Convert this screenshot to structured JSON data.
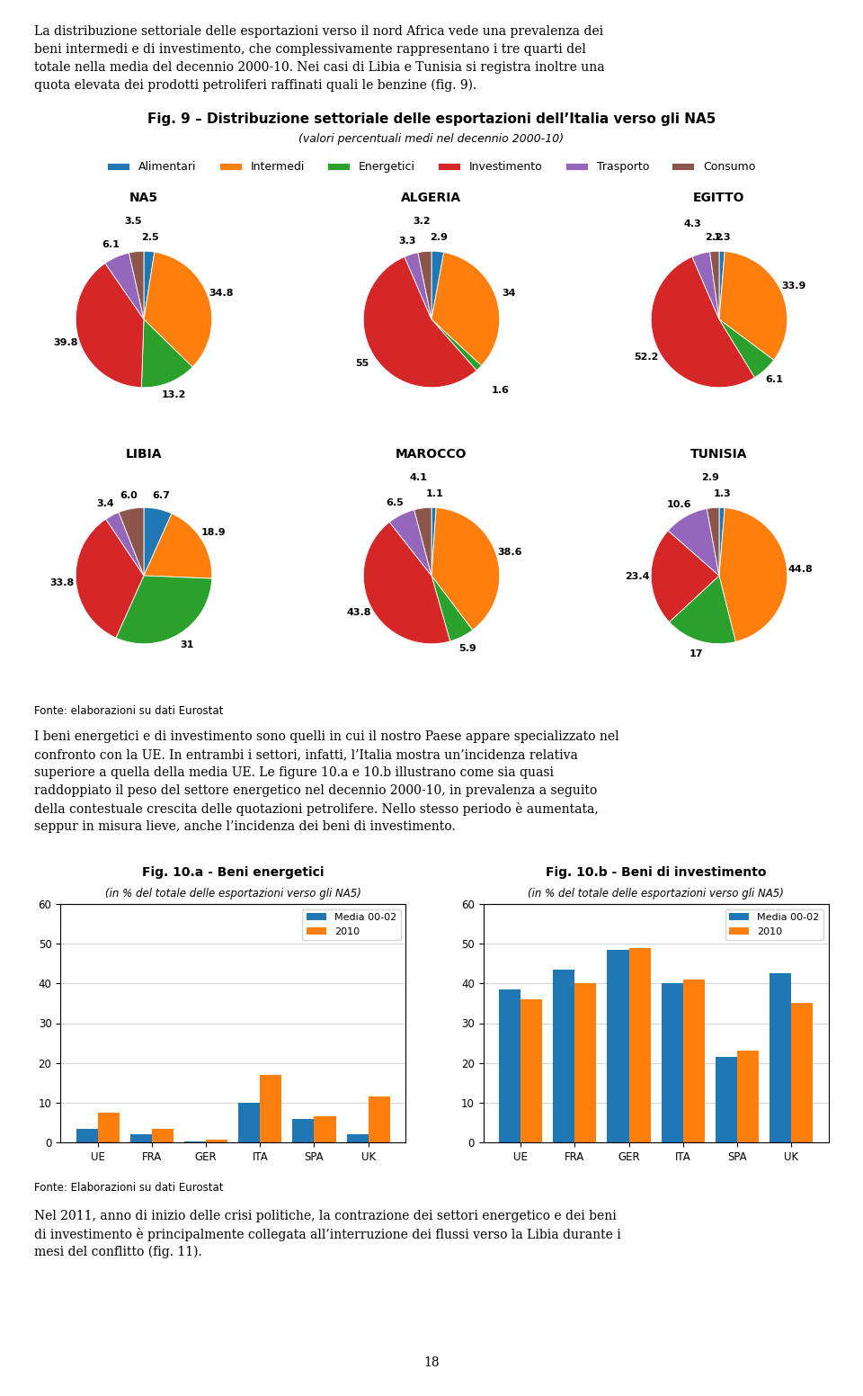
{
  "title": "Fig. 9 – Distribuzione settoriale delle esportazioni dell’Italia verso gli NA5",
  "subtitle": "(valori percentuali medi nel decennio 2000-10)",
  "intro": [
    "La distribuzione settoriale delle esportazioni verso il nord Africa vede una prevalenza dei",
    "beni intermedi e di investimento, che complessivamente rappresentano i tre quarti del",
    "totale nella media del decennio 2000-10. Nei casi di Libia e Tunisia si registra inoltre una",
    "quota elevata dei prodotti petroliferi raffinati quali le benzine (fig. 9)."
  ],
  "source_1": "Fonte: elaborazioni su dati Eurostat",
  "body_1": [
    "I beni energetici e di investimento sono quelli in cui il nostro Paese appare specializzato nel",
    "confronto con la UE. In entrambi i settori, infatti, l’Italia mostra un’incidenza relativa",
    "superiore a quella della media UE. Le figure 10.a e 10.b illustrano come sia quasi",
    "raddoppiato il peso del settore energetico nel decennio 2000-10, in prevalenza a seguito",
    "della contestuale crescita delle quotazioni petrolifere. Nello stesso periodo è aumentata,",
    "seppur in misura lieve, anche l’incidenza dei beni di investimento."
  ],
  "source_2": "Fonte: Elaborazioni su dati Eurostat",
  "body_2": [
    "Nel 2011, anno di inizio delle crisi politiche, la contrazione dei settori energetico e dei beni",
    "di investimento è principalmente collegata all’interruzione dei flussi verso la Libia durante i",
    "mesi del conflitto (fig. 11)."
  ],
  "page_number": "18",
  "chart_data": [
    {
      "type": "pie",
      "title": "NA5",
      "categories": [
        "Alimentari",
        "Intermedi",
        "Energetici",
        "Investimento",
        "Trasporto",
        "Consumo"
      ],
      "values": [
        2.5,
        34.8,
        13.2,
        39.8,
        6.1,
        3.5
      ],
      "data_labels": true,
      "legend": "upper center"
    },
    {
      "type": "pie",
      "title": "ALGERIA",
      "categories": [
        "Alimentari",
        "Intermedi",
        "Energetici",
        "Investimento",
        "Trasporto",
        "Consumo"
      ],
      "values": [
        2.9,
        34,
        1.6,
        55,
        3.3,
        3.2
      ],
      "data_labels": true
    },
    {
      "type": "pie",
      "title": "EGITTO",
      "categories": [
        "Alimentari",
        "Intermedi",
        "Energetici",
        "Investimento",
        "Trasporto",
        "Consumo"
      ],
      "values": [
        1.3,
        33.9,
        6.1,
        52.2,
        4.3,
        2.2
      ],
      "data_labels": true
    },
    {
      "type": "pie",
      "title": "LIBIA",
      "categories": [
        "Alimentari",
        "Intermedi",
        "Energetici",
        "Investimento",
        "Trasporto",
        "Consumo"
      ],
      "values": [
        6.7,
        18.9,
        31,
        33.8,
        3.4,
        6.0
      ],
      "data_labels": true
    },
    {
      "type": "pie",
      "title": "MAROCCO",
      "categories": [
        "Alimentari",
        "Intermedi",
        "Energetici",
        "Investimento",
        "Trasporto",
        "Consumo"
      ],
      "values": [
        1.1,
        38.6,
        5.9,
        43.8,
        6.5,
        4.1
      ],
      "data_labels": true
    },
    {
      "type": "pie",
      "title": "TUNISIA",
      "categories": [
        "Alimentari",
        "Intermedi",
        "Energetici",
        "Investimento",
        "Trasporto",
        "Consumo"
      ],
      "values": [
        1.3,
        44.8,
        17,
        23.4,
        10.6,
        2.9
      ],
      "data_labels": true
    },
    {
      "type": "bar",
      "title": "Fig. 10.a - Beni energetici",
      "subtitle": "(in % del totale delle esportazioni verso gli NA5)",
      "categories": [
        "UE",
        "FRA",
        "GER",
        "ITA",
        "SPA",
        "UK"
      ],
      "series": [
        {
          "name": "Media 00-02",
          "values": [
            3.5,
            2.0,
            0.3,
            10.0,
            6.0,
            2.0
          ]
        },
        {
          "name": "2010",
          "values": [
            7.5,
            3.5,
            0.7,
            17.0,
            6.5,
            11.5
          ]
        }
      ],
      "ylim": [
        0,
        60
      ],
      "yticks": [
        0,
        10,
        20,
        30,
        40,
        50,
        60
      ],
      "grid": true,
      "legend": "upper right"
    },
    {
      "type": "bar",
      "title": "Fig. 10.b - Beni di investimento",
      "subtitle": "(in % del totale delle esportazioni verso gli NA5)",
      "categories": [
        "UE",
        "FRA",
        "GER",
        "ITA",
        "SPA",
        "UK"
      ],
      "series": [
        {
          "name": "Media 00-02",
          "values": [
            38.5,
            43.5,
            48.5,
            40.0,
            21.5,
            42.5
          ]
        },
        {
          "name": "2010",
          "values": [
            36.0,
            40.0,
            49.0,
            41.0,
            23.0,
            35.0
          ]
        }
      ],
      "ylim": [
        0,
        60
      ],
      "yticks": [
        0,
        10,
        20,
        30,
        40,
        50,
        60
      ],
      "grid": true,
      "legend": "upper right"
    }
  ]
}
